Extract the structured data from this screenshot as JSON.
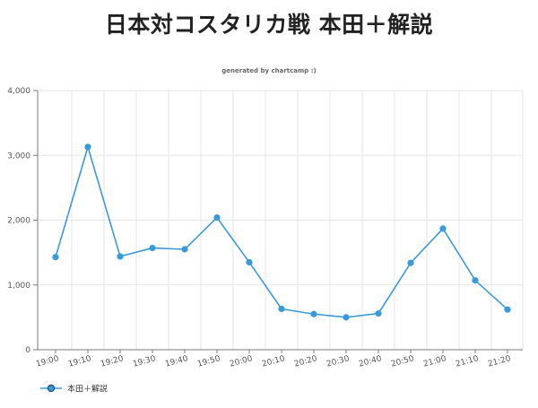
{
  "page_title": "日本対コスタリカ戦 本田＋解説",
  "subtitle": "generated by chartcamp :)",
  "colors": {
    "series": "#3a9ad9",
    "grid": "#e6e6e6",
    "axis": "#7a7a7a",
    "label": "#555555"
  },
  "chart_data": {
    "type": "line",
    "title": "",
    "xlabel": "",
    "ylabel": "",
    "categories": [
      "19:00",
      "19:10",
      "19:20",
      "19:30",
      "19:40",
      "19:50",
      "20:00",
      "20:10",
      "20:20",
      "20:30",
      "20:40",
      "20:50",
      "21:00",
      "21:10",
      "21:20"
    ],
    "series": [
      {
        "name": "本田＋解説",
        "values": [
          1430,
          3130,
          1440,
          1570,
          1550,
          2040,
          1350,
          630,
          550,
          500,
          560,
          1340,
          1870,
          1070,
          620
        ]
      }
    ],
    "ylim": [
      0,
      4000
    ],
    "yticks": [
      "0",
      "1,000",
      "2,000",
      "3,000",
      "4,000"
    ],
    "grid": true,
    "legend": "bottom-left"
  }
}
